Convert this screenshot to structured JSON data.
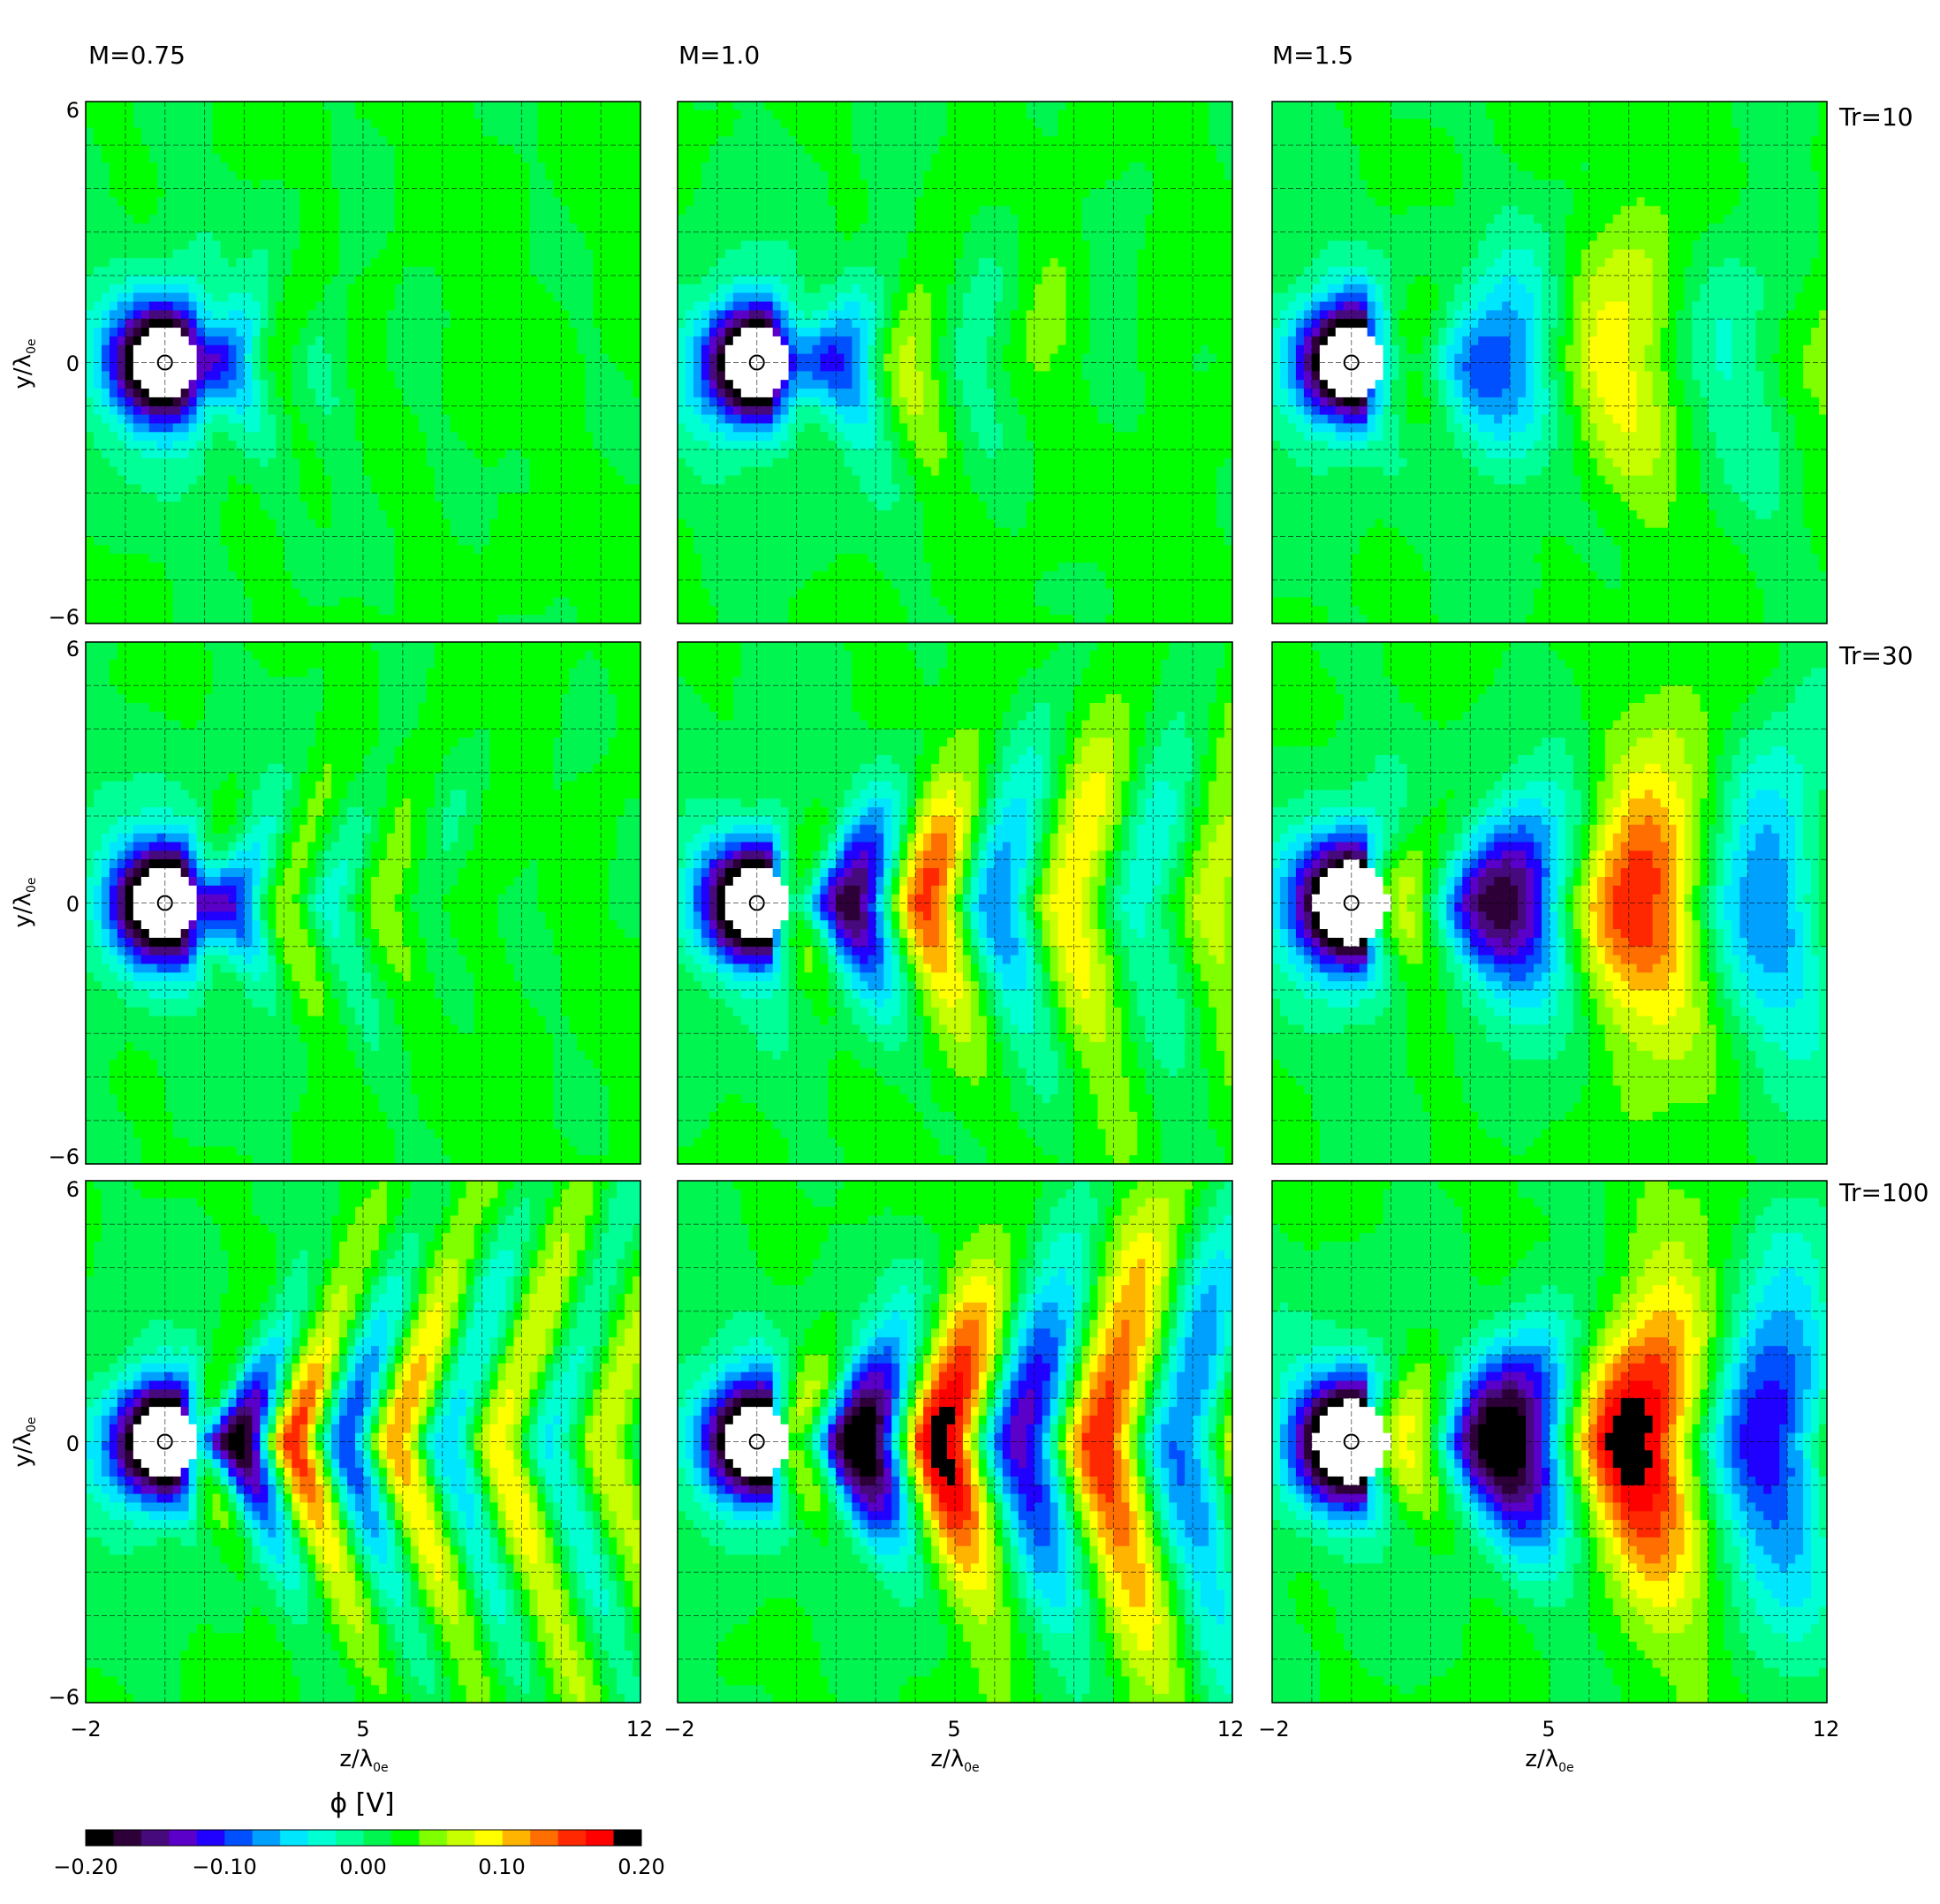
{
  "chart_data": {
    "type": "heatmap",
    "description_note": "3x3 grid of filled contour maps of electrostatic potential around a grain",
    "columns": [
      {
        "label": "M=0.75",
        "mach": 0.75
      },
      {
        "label": "M=1.0",
        "mach": 1.0
      },
      {
        "label": "M=1.5",
        "mach": 1.5
      }
    ],
    "rows": [
      {
        "label": "Tr=10",
        "tr": 10
      },
      {
        "label": "Tr=30",
        "tr": 30
      },
      {
        "label": "Tr=100",
        "tr": 100
      }
    ],
    "xlabel": "z/λ",
    "xlabel_sub": "0e",
    "ylabel": "y/λ",
    "ylabel_sub": "0e",
    "xlim": [
      -2,
      12
    ],
    "ylim": [
      -6,
      6
    ],
    "xticks": [
      -2,
      5,
      12
    ],
    "yticks": [
      6,
      0,
      -6
    ],
    "x_tick_labels": [
      "−2",
      "5",
      "12"
    ],
    "y_tick_labels": [
      "6",
      "0",
      "−6"
    ],
    "grain_position": [
      0,
      0
    ],
    "grid": true,
    "colorbar": {
      "label": "ϕ [V]",
      "range": [
        -0.2,
        0.2
      ],
      "tick_values": [
        -0.2,
        -0.1,
        0.0,
        0.1,
        0.2
      ],
      "tick_labels": [
        "−0.20",
        "−0.10",
        "0.00",
        "0.10",
        "0.20"
      ],
      "colors": [
        "#000000",
        "#2d0038",
        "#470a7d",
        "#5a00c8",
        "#2000ff",
        "#0050ff",
        "#00a0ff",
        "#00e6ff",
        "#00ffd2",
        "#00ff96",
        "#00f550",
        "#00ff00",
        "#80ff00",
        "#c8ff00",
        "#ffff00",
        "#ffb400",
        "#ff6e00",
        "#ff2800",
        "#ff0000",
        "#000000"
      ]
    },
    "panels": [
      {
        "row": 0,
        "col": 0,
        "wake_amplitude": 0.06,
        "wake_wavelength": 2.2,
        "wake_decay": 2.5,
        "cone_slope": 0.55,
        "grain_core": 1.0
      },
      {
        "row": 0,
        "col": 1,
        "wake_amplitude": 0.11,
        "wake_wavelength": 3.2,
        "wake_decay": 3.5,
        "cone_slope": 0.45,
        "grain_core": 1.0
      },
      {
        "row": 0,
        "col": 2,
        "wake_amplitude": 0.17,
        "wake_wavelength": 6.0,
        "wake_decay": 6.0,
        "cone_slope": 0.35,
        "grain_core": 1.0
      },
      {
        "row": 1,
        "col": 0,
        "wake_amplitude": 0.09,
        "wake_wavelength": 2.4,
        "wake_decay": 4.0,
        "cone_slope": 0.6,
        "grain_core": 1.0
      },
      {
        "row": 1,
        "col": 1,
        "wake_amplitude": 0.2,
        "wake_wavelength": 3.6,
        "wake_decay": 7.0,
        "cone_slope": 0.45,
        "grain_core": 1.0
      },
      {
        "row": 1,
        "col": 2,
        "wake_amplitude": 0.24,
        "wake_wavelength": 6.5,
        "wake_decay": 10.0,
        "cone_slope": 0.32,
        "grain_core": 1.1
      },
      {
        "row": 2,
        "col": 0,
        "wake_amplitude": 0.17,
        "wake_wavelength": 2.6,
        "wake_decay": 8.0,
        "cone_slope": 0.6,
        "grain_core": 1.0
      },
      {
        "row": 2,
        "col": 1,
        "wake_amplitude": 0.24,
        "wake_wavelength": 4.0,
        "wake_decay": 12.0,
        "cone_slope": 0.45,
        "grain_core": 1.0
      },
      {
        "row": 2,
        "col": 2,
        "wake_amplitude": 0.26,
        "wake_wavelength": 6.5,
        "wake_decay": 14.0,
        "cone_slope": 0.32,
        "grain_core": 1.1
      }
    ]
  }
}
